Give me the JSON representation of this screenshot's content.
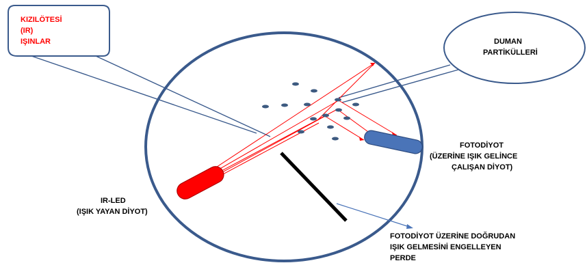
{
  "labels": {
    "ir_rays": [
      "KIZILÖTESİ",
      "(IR)",
      "IŞINLAR"
    ],
    "smoke_particles": [
      "DUMAN",
      "PARTİKÜLLERİ"
    ],
    "photodiode": [
      "FOTODİYOT",
      "(ÜZERİNE IŞIK GELİNCE",
      "ÇALIŞAN DİYOT)"
    ],
    "ir_led": [
      "IR-LED",
      "(IŞIK YAYAN DİYOT)"
    ],
    "barrier": [
      "FOTODİYOT ÜZERİNE DOĞRUDAN",
      "IŞIK GELMESİNİ ENGELLEYEN",
      "PERDE"
    ]
  },
  "colors": {
    "chamber_outline": "#3a5a8c",
    "ir_led": "#ff0000",
    "ir_rays": "#ff0000",
    "photodiode": "#4a74b8",
    "particle": "#3d5a80",
    "barrier": "#000000",
    "callout_border": "#3a5a8c",
    "pointer_line": "#4a74b8"
  }
}
